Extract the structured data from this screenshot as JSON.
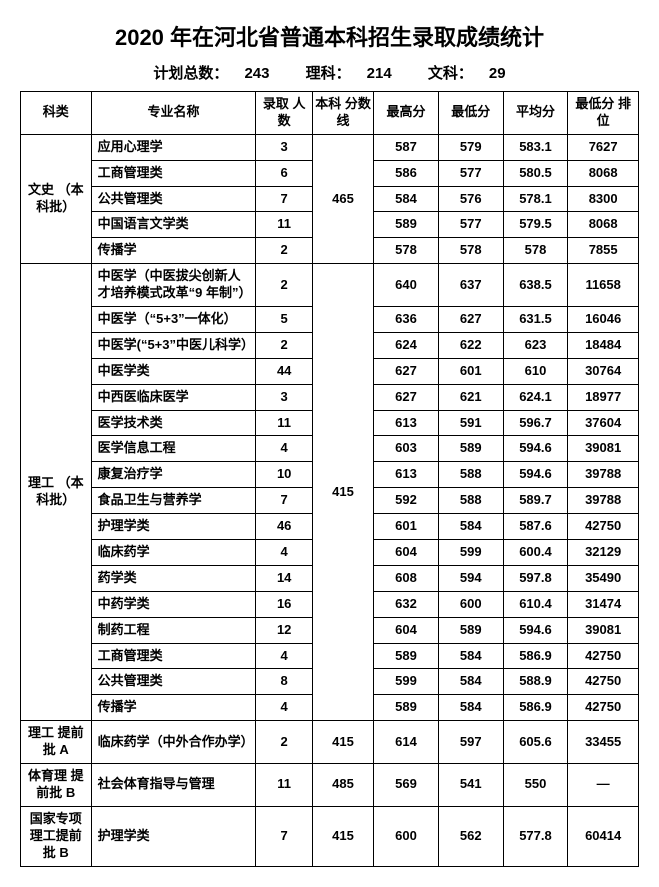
{
  "title": "2020 年在河北省普通本科招生录取成绩统计",
  "subtitle": {
    "plan_total_label": "计划总数：",
    "plan_total_value": "243",
    "science_label": "理科：",
    "science_value": "214",
    "arts_label": "文科：",
    "arts_value": "29"
  },
  "headers": {
    "category": "科类",
    "major": "专业名称",
    "admitted": "录取\n人数",
    "cutoff": "本科\n分数线",
    "max": "最高分",
    "min": "最低分",
    "avg": "平均分",
    "rank": "最低分\n排位"
  },
  "groups": [
    {
      "category": "文史\n（本科批）",
      "cutoff": "465",
      "rows": [
        {
          "major": "应用心理学",
          "admitted": "3",
          "max": "587",
          "min": "579",
          "avg": "583.1",
          "rank": "7627"
        },
        {
          "major": "工商管理类",
          "admitted": "6",
          "max": "586",
          "min": "577",
          "avg": "580.5",
          "rank": "8068"
        },
        {
          "major": "公共管理类",
          "admitted": "7",
          "max": "584",
          "min": "576",
          "avg": "578.1",
          "rank": "8300"
        },
        {
          "major": "中国语言文学类",
          "admitted": "11",
          "max": "589",
          "min": "577",
          "avg": "579.5",
          "rank": "8068"
        },
        {
          "major": "传播学",
          "admitted": "2",
          "max": "578",
          "min": "578",
          "avg": "578",
          "rank": "7855"
        }
      ]
    },
    {
      "category": "理工\n（本科批）",
      "cutoff": "415",
      "rows": [
        {
          "major": "中医学（中医拔尖创新人才培养模式改革“9 年制”）",
          "admitted": "2",
          "max": "640",
          "min": "637",
          "avg": "638.5",
          "rank": "11658"
        },
        {
          "major": "中医学（“5+3”一体化）",
          "admitted": "5",
          "max": "636",
          "min": "627",
          "avg": "631.5",
          "rank": "16046"
        },
        {
          "major": "中医学(“5+3”中医儿科学）",
          "admitted": "2",
          "max": "624",
          "min": "622",
          "avg": "623",
          "rank": "18484"
        },
        {
          "major": "中医学类",
          "admitted": "44",
          "max": "627",
          "min": "601",
          "avg": "610",
          "rank": "30764"
        },
        {
          "major": "中西医临床医学",
          "admitted": "3",
          "max": "627",
          "min": "621",
          "avg": "624.1",
          "rank": "18977"
        },
        {
          "major": "医学技术类",
          "admitted": "11",
          "max": "613",
          "min": "591",
          "avg": "596.7",
          "rank": "37604"
        },
        {
          "major": "医学信息工程",
          "admitted": "4",
          "max": "603",
          "min": "589",
          "avg": "594.6",
          "rank": "39081"
        },
        {
          "major": "康复治疗学",
          "admitted": "10",
          "max": "613",
          "min": "588",
          "avg": "594.6",
          "rank": "39788"
        },
        {
          "major": "食品卫生与营养学",
          "admitted": "7",
          "max": "592",
          "min": "588",
          "avg": "589.7",
          "rank": "39788"
        },
        {
          "major": "护理学类",
          "admitted": "46",
          "max": "601",
          "min": "584",
          "avg": "587.6",
          "rank": "42750"
        },
        {
          "major": "临床药学",
          "admitted": "4",
          "max": "604",
          "min": "599",
          "avg": "600.4",
          "rank": "32129"
        },
        {
          "major": "药学类",
          "admitted": "14",
          "max": "608",
          "min": "594",
          "avg": "597.8",
          "rank": "35490"
        },
        {
          "major": "中药学类",
          "admitted": "16",
          "max": "632",
          "min": "600",
          "avg": "610.4",
          "rank": "31474"
        },
        {
          "major": "制药工程",
          "admitted": "12",
          "max": "604",
          "min": "589",
          "avg": "594.6",
          "rank": "39081"
        },
        {
          "major": "工商管理类",
          "admitted": "4",
          "max": "589",
          "min": "584",
          "avg": "586.9",
          "rank": "42750"
        },
        {
          "major": "公共管理类",
          "admitted": "8",
          "max": "599",
          "min": "584",
          "avg": "588.9",
          "rank": "42750"
        },
        {
          "major": "传播学",
          "admitted": "4",
          "max": "589",
          "min": "584",
          "avg": "586.9",
          "rank": "42750"
        }
      ]
    },
    {
      "category": "理工\n提前批 A",
      "cutoff": "415",
      "rows": [
        {
          "major": "临床药学（中外合作办学）",
          "admitted": "2",
          "max": "614",
          "min": "597",
          "avg": "605.6",
          "rank": "33455"
        }
      ]
    },
    {
      "category": "体育理\n提前批 B",
      "cutoff": "485",
      "rows": [
        {
          "major": "社会体育指导与管理",
          "admitted": "11",
          "max": "569",
          "min": "541",
          "avg": "550",
          "rank": "—"
        }
      ]
    },
    {
      "category": "国家专项\n理工提前\n批 B",
      "cutoff": "415",
      "rows": [
        {
          "major": "护理学类",
          "admitted": "7",
          "max": "600",
          "min": "562",
          "avg": "577.8",
          "rank": "60414"
        }
      ]
    }
  ]
}
